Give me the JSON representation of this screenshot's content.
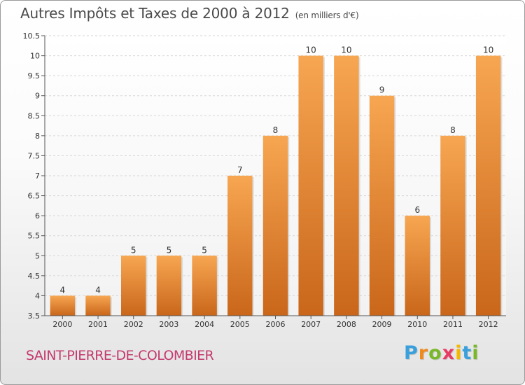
{
  "header": {
    "title": "Autres Impôts et Taxes de 2000 à 2012",
    "unit": "(en milliers d'€)"
  },
  "footer": {
    "town": "SAINT-PIERRE-DE-COLOMBIER",
    "logo_letters": [
      "P",
      "r",
      "o",
      "x",
      "i",
      "t",
      "i"
    ],
    "logo_colors": [
      "#3aa0dc",
      "#f08a1c",
      "#7ab829",
      "#e83b63",
      "#f5b800",
      "#3aa0dc",
      "#7ab829"
    ]
  },
  "chart_data": {
    "type": "bar",
    "categories": [
      "2000",
      "2001",
      "2002",
      "2003",
      "2004",
      "2005",
      "2006",
      "2007",
      "2008",
      "2009",
      "2010",
      "2011",
      "2012"
    ],
    "values": [
      4,
      4,
      5,
      5,
      5,
      7,
      8,
      10,
      10,
      9,
      6,
      8,
      10
    ],
    "data_labels": [
      "4",
      "4",
      "5",
      "5",
      "5",
      "7",
      "8",
      "10",
      "10",
      "9",
      "6",
      "8",
      "10"
    ],
    "ylim": [
      3.5,
      10.5
    ],
    "yticks": [
      "3.5",
      "4",
      "4.5",
      "5",
      "5.5",
      "6",
      "6.5",
      "7",
      "7.5",
      "8",
      "8.5",
      "9",
      "9.5",
      "10",
      "10.5"
    ],
    "grid": true,
    "bar_color_top": "#f7a651",
    "bar_color_bottom": "#c9661a"
  }
}
